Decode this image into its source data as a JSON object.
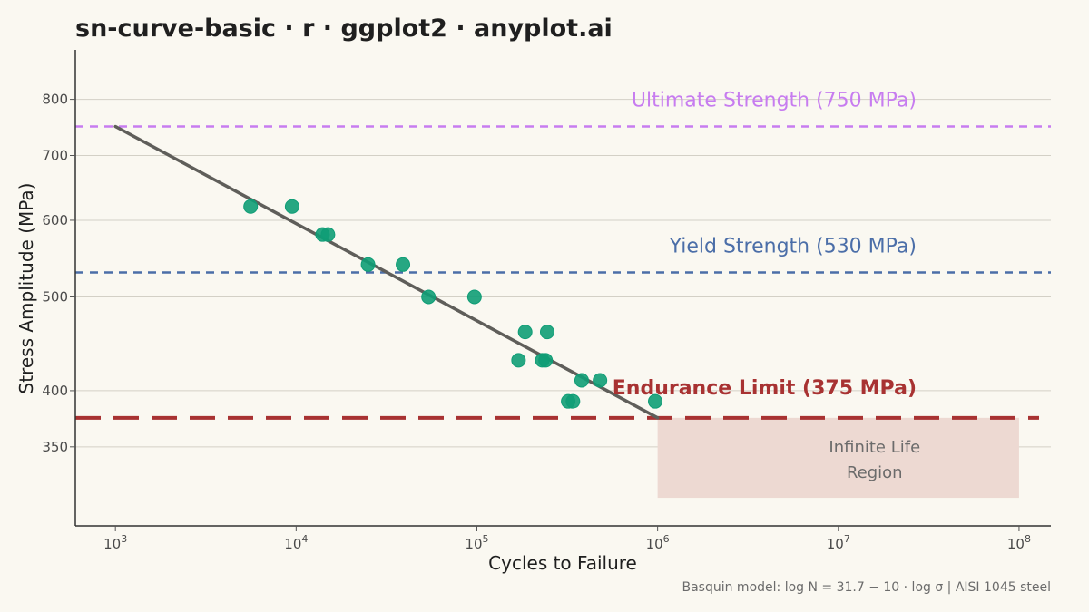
{
  "chart_data": {
    "type": "scatter",
    "title": "sn-curve-basic · r · ggplot2 · anyplot.ai",
    "xlabel": "Cycles to Failure",
    "ylabel": "Stress Amplitude (MPa)",
    "caption": "Basquin model: log N = 31.7 − 10 · log σ  |  AISI 1045 steel",
    "x_scale": "log10",
    "y_scale": "log10",
    "xlim": [
      600,
      150000000
    ],
    "ylim": [
      290,
      900
    ],
    "grid": "horizontal",
    "x_ticks": [
      {
        "value": 1000,
        "base": "10",
        "exp": "3"
      },
      {
        "value": 10000,
        "base": "10",
        "exp": "4"
      },
      {
        "value": 100000,
        "base": "10",
        "exp": "5"
      },
      {
        "value": 1000000,
        "base": "10",
        "exp": "6"
      },
      {
        "value": 10000000,
        "base": "10",
        "exp": "7"
      },
      {
        "value": 100000000,
        "base": "10",
        "exp": "8"
      }
    ],
    "y_ticks": [
      {
        "value": 350,
        "label": "350"
      },
      {
        "value": 400,
        "label": "400"
      },
      {
        "value": 500,
        "label": "500"
      },
      {
        "value": 600,
        "label": "600"
      },
      {
        "value": 700,
        "label": "700"
      },
      {
        "value": 800,
        "label": "800"
      }
    ],
    "series": [
      {
        "kind": "points",
        "color": "#0F9D76",
        "x": [
          5600,
          9500,
          14000,
          15000,
          25000,
          39000,
          54000,
          97000,
          170000,
          185000,
          230000,
          240000,
          245000,
          320000,
          340000,
          380000,
          480000,
          970000
        ],
        "y": [
          620,
          620,
          580,
          580,
          540,
          540,
          500,
          500,
          430,
          460,
          430,
          430,
          460,
          390,
          390,
          410,
          410,
          390
        ]
      },
      {
        "kind": "fit-line",
        "color": "#5f5e5a",
        "x": [
          1000,
          1000000
        ],
        "y": [
          750,
          375
        ]
      }
    ],
    "reference_lines": [
      {
        "label": "Ultimate Strength (750 MPa)",
        "value": 750,
        "color": "#C77CF0",
        "style": "dashed"
      },
      {
        "label": "Yield Strength (530 MPa)",
        "value": 530,
        "color": "#4B6EA8",
        "style": "dashed"
      },
      {
        "label": "Endurance Limit (375 MPa)",
        "value": 375,
        "color": "#A83232",
        "style": "long-dashed"
      }
    ],
    "region": {
      "label_lines": [
        "Infinite Life",
        "Region"
      ],
      "x": [
        1000000,
        100000000
      ],
      "y": [
        310,
        375
      ],
      "color": "#EDD9D2"
    }
  }
}
